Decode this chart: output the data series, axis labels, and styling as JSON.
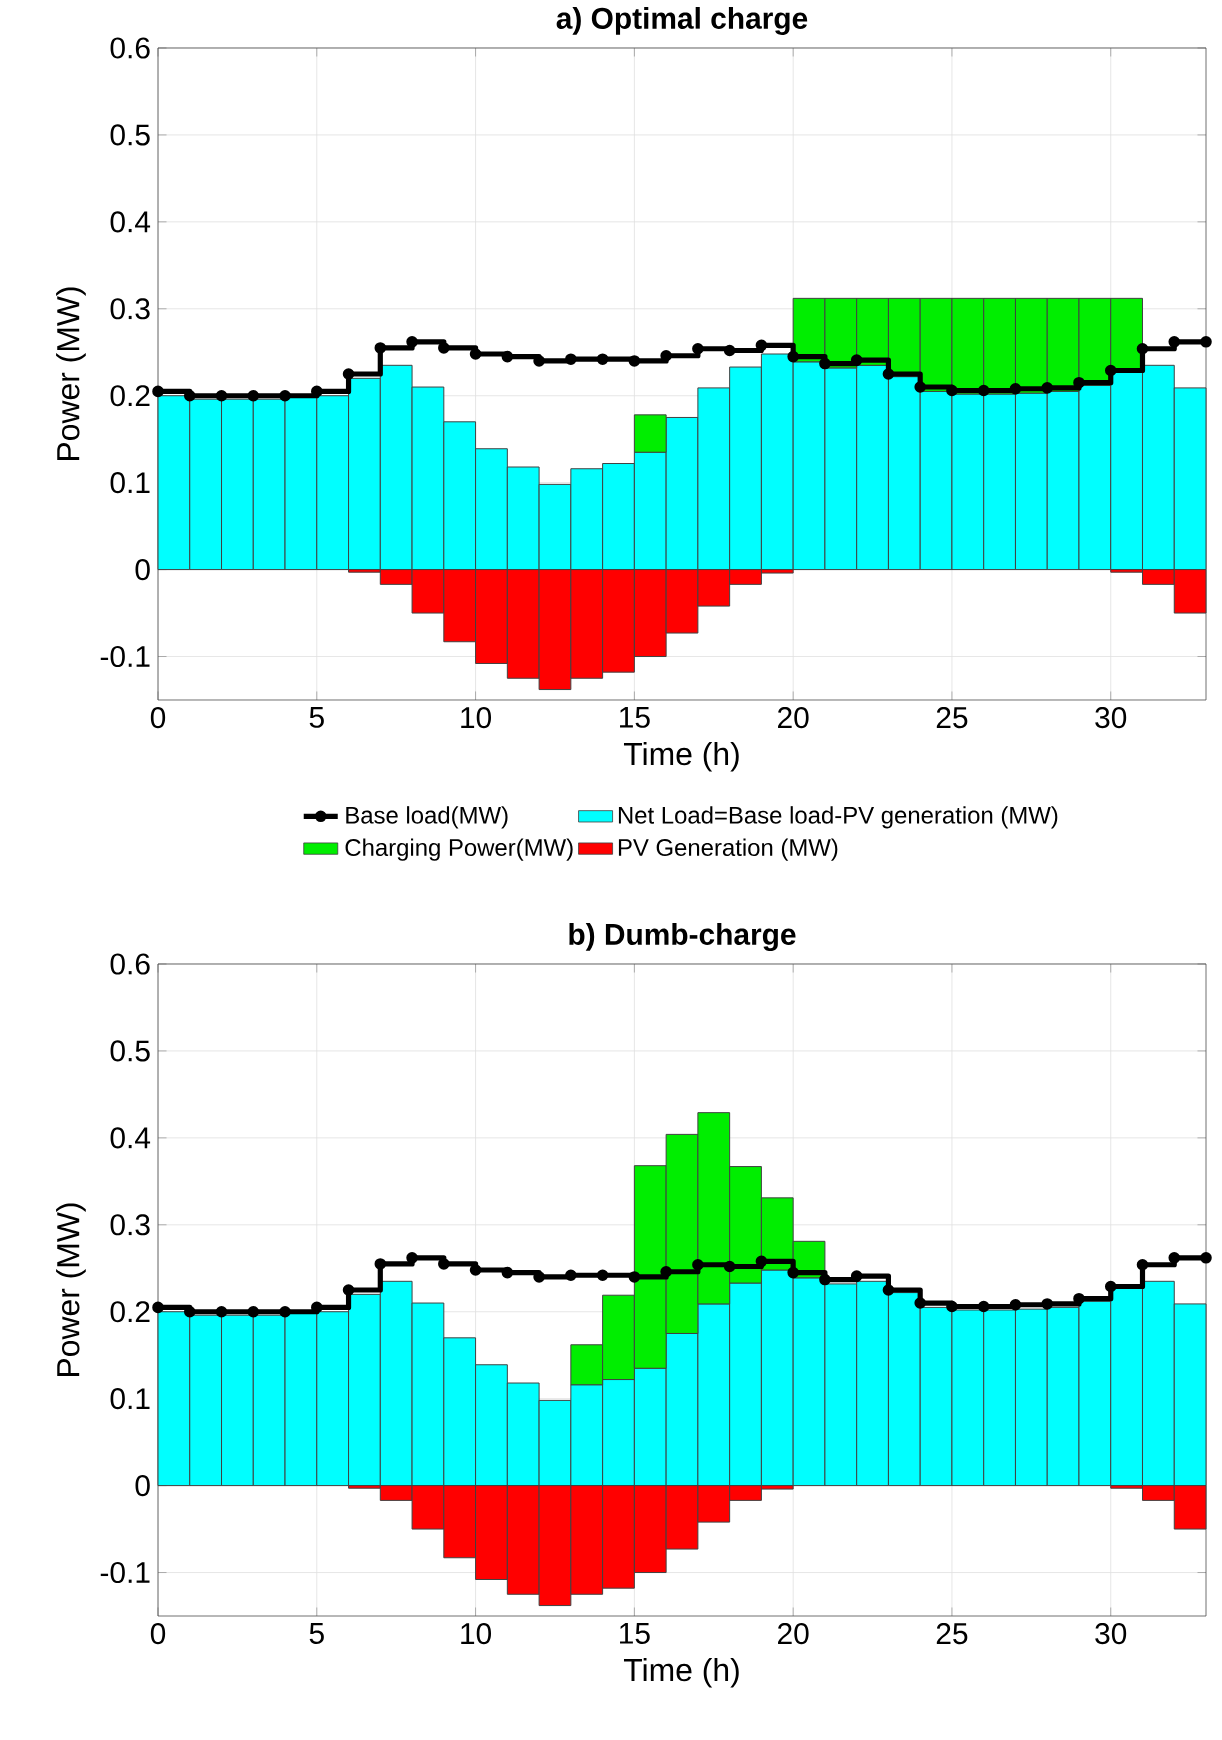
{
  "chart_data": [
    {
      "type": "bar",
      "title": "a) Optimal charge",
      "xlabel": "Time (h)",
      "ylabel": "Power (MW)",
      "stacked": true,
      "grid": true,
      "legend": "bottom",
      "marker": "circle",
      "xlim": [
        0,
        33
      ],
      "ylim": [
        -0.15,
        0.6
      ],
      "xticks": [
        0,
        5,
        10,
        15,
        20,
        25,
        30
      ],
      "yticks": [
        -0.1,
        0,
        0.1,
        0.2,
        0.3,
        0.4,
        0.5,
        0.6
      ],
      "x": [
        0.5,
        1.5,
        2.5,
        3.5,
        4.5,
        5.5,
        6.5,
        7.5,
        8.5,
        9.5,
        10.5,
        11.5,
        12.5,
        13.5,
        14.5,
        15.5,
        16.5,
        17.5,
        18.5,
        19.5,
        20.5,
        21.5,
        22.5,
        23.5,
        24.5,
        25.5,
        26.5,
        27.5,
        28.5,
        29.5,
        30.5,
        31.5,
        32.5
      ],
      "series": [
        {
          "name": "Base load(MW)",
          "type": "step",
          "color": "#000000",
          "x": [
            0,
            1,
            2,
            3,
            4,
            5,
            6,
            7,
            8,
            9,
            10,
            11,
            12,
            13,
            14,
            15,
            16,
            17,
            18,
            19,
            20,
            21,
            22,
            23,
            24,
            25,
            26,
            27,
            28,
            29,
            30,
            31,
            32,
            33
          ],
          "values": [
            0.205,
            0.2,
            0.2,
            0.2,
            0.2,
            0.205,
            0.225,
            0.255,
            0.262,
            0.255,
            0.248,
            0.245,
            0.24,
            0.242,
            0.242,
            0.24,
            0.246,
            0.254,
            0.252,
            0.258,
            0.245,
            0.237,
            0.241,
            0.225,
            0.21,
            0.206,
            0.206,
            0.208,
            0.209,
            0.215,
            0.229,
            0.254,
            0.262,
            0.262
          ]
        },
        {
          "name": "Net Load=Base load-PV generation (MW)",
          "color": "#00ffff",
          "values": [
            0.2,
            0.196,
            0.196,
            0.196,
            0.198,
            0.2,
            0.22,
            0.235,
            0.21,
            0.17,
            0.139,
            0.118,
            0.098,
            0.116,
            0.122,
            0.135,
            0.175,
            0.209,
            0.233,
            0.248,
            0.239,
            0.232,
            0.235,
            0.222,
            0.205,
            0.202,
            0.202,
            0.203,
            0.205,
            0.212,
            0.228,
            0.235,
            0.209
          ]
        },
        {
          "name": "Charging Power(MW)",
          "color": "#00ee00",
          "values": [
            0,
            0,
            0,
            0,
            0,
            0,
            0,
            0,
            0,
            0,
            0,
            0,
            0,
            0,
            0,
            0.043,
            0,
            0,
            0,
            0,
            0.073,
            0.08,
            0.077,
            0.09,
            0.107,
            0.11,
            0.11,
            0.109,
            0.107,
            0.1,
            0.084,
            0,
            0
          ]
        },
        {
          "name": "PV Generation (MW)",
          "color": "#ff0000",
          "values": [
            0,
            0,
            0,
            0,
            0,
            0,
            -0.003,
            -0.017,
            -0.05,
            -0.083,
            -0.108,
            -0.125,
            -0.138,
            -0.125,
            -0.118,
            -0.1,
            -0.073,
            -0.042,
            -0.017,
            -0.004,
            0,
            0,
            0,
            0,
            0,
            0,
            0,
            0,
            0,
            0,
            -0.003,
            -0.017,
            -0.05
          ]
        }
      ]
    },
    {
      "type": "bar",
      "title": "b) Dumb-charge",
      "xlabel": "Time (h)",
      "ylabel": "Power (MW)",
      "stacked": true,
      "grid": true,
      "marker": "circle",
      "xlim": [
        0,
        33
      ],
      "ylim": [
        -0.15,
        0.6
      ],
      "xticks": [
        0,
        5,
        10,
        15,
        20,
        25,
        30
      ],
      "yticks": [
        -0.1,
        0,
        0.1,
        0.2,
        0.3,
        0.4,
        0.5,
        0.6
      ],
      "x": [
        0.5,
        1.5,
        2.5,
        3.5,
        4.5,
        5.5,
        6.5,
        7.5,
        8.5,
        9.5,
        10.5,
        11.5,
        12.5,
        13.5,
        14.5,
        15.5,
        16.5,
        17.5,
        18.5,
        19.5,
        20.5,
        21.5,
        22.5,
        23.5,
        24.5,
        25.5,
        26.5,
        27.5,
        28.5,
        29.5,
        30.5,
        31.5,
        32.5
      ],
      "series": [
        {
          "type": "step",
          "color": "#000000",
          "x": [
            0,
            1,
            2,
            3,
            4,
            5,
            6,
            7,
            8,
            9,
            10,
            11,
            12,
            13,
            14,
            15,
            16,
            17,
            18,
            19,
            20,
            21,
            22,
            23,
            24,
            25,
            26,
            27,
            28,
            29,
            30,
            31,
            32,
            33
          ],
          "values": [
            0.205,
            0.2,
            0.2,
            0.2,
            0.2,
            0.205,
            0.225,
            0.255,
            0.262,
            0.255,
            0.248,
            0.245,
            0.24,
            0.242,
            0.242,
            0.24,
            0.246,
            0.254,
            0.252,
            0.258,
            0.245,
            0.237,
            0.241,
            0.225,
            0.21,
            0.206,
            0.206,
            0.208,
            0.209,
            0.215,
            0.229,
            0.254,
            0.262,
            0.262
          ]
        },
        {
          "color": "#00ffff",
          "values": [
            0.2,
            0.196,
            0.196,
            0.196,
            0.198,
            0.2,
            0.22,
            0.235,
            0.21,
            0.17,
            0.139,
            0.118,
            0.098,
            0.116,
            0.122,
            0.135,
            0.175,
            0.209,
            0.233,
            0.248,
            0.239,
            0.232,
            0.235,
            0.222,
            0.205,
            0.202,
            0.202,
            0.203,
            0.205,
            0.212,
            0.228,
            0.235,
            0.209
          ]
        },
        {
          "color": "#00ee00",
          "values": [
            0,
            0,
            0,
            0,
            0,
            0,
            0,
            0,
            0,
            0,
            0,
            0,
            0,
            0.046,
            0.097,
            0.233,
            0.229,
            0.22,
            0.134,
            0.083,
            0.042,
            0,
            0,
            0,
            0,
            0,
            0,
            0,
            0,
            0,
            0,
            0,
            0
          ]
        },
        {
          "color": "#ff0000",
          "values": [
            0,
            0,
            0,
            0,
            0,
            0,
            -0.003,
            -0.017,
            -0.05,
            -0.083,
            -0.108,
            -0.125,
            -0.138,
            -0.125,
            -0.118,
            -0.1,
            -0.073,
            -0.042,
            -0.017,
            -0.004,
            0,
            0,
            0,
            0,
            0,
            0,
            0,
            0,
            0,
            0,
            -0.003,
            -0.017,
            -0.05
          ]
        }
      ]
    }
  ]
}
